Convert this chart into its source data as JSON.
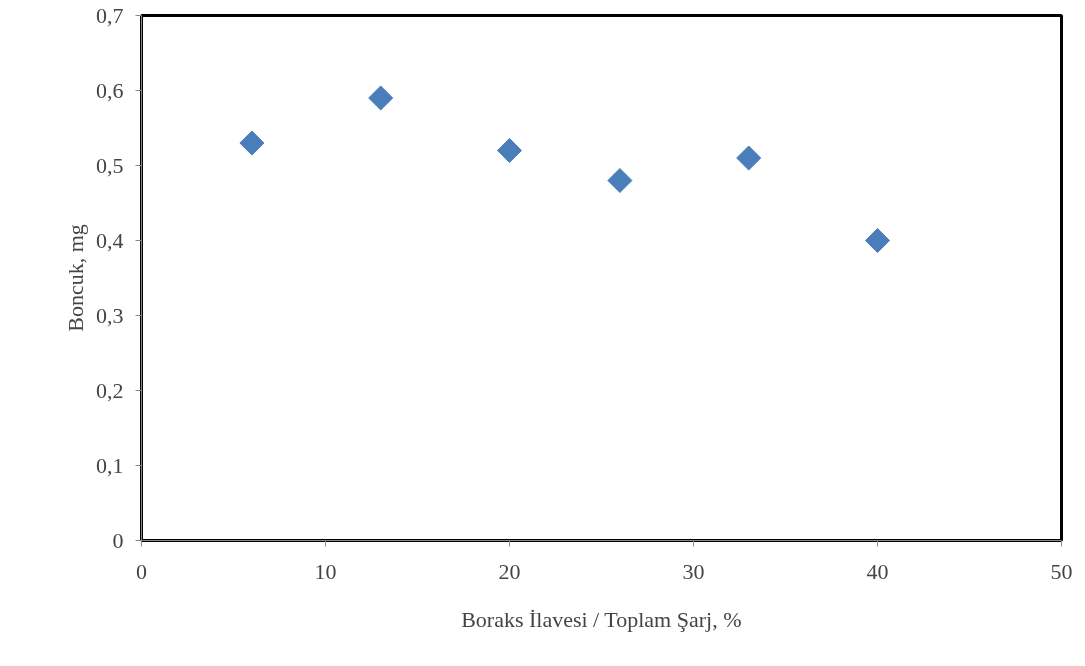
{
  "chart_data": {
    "type": "scatter",
    "xlabel": "Boraks İlavesi / Toplam Şarj, %",
    "ylabel": "Boncuk, mg",
    "x": [
      6,
      13,
      20,
      26,
      33,
      40
    ],
    "series": [
      {
        "color": "#4a7ebb",
        "values": [
          0.53,
          0.59,
          0.52,
          0.48,
          0.51,
          0.4
        ]
      }
    ],
    "xlim": [
      0,
      50
    ],
    "xticks": [
      0,
      10,
      20,
      30,
      40,
      50
    ],
    "ylim": [
      0,
      0.7
    ],
    "yticks": [
      0,
      {
        "value": 0.1,
        "label": "0,1"
      },
      {
        "value": 0.2,
        "label": "0,2"
      },
      {
        "value": 0.3,
        "label": "0,3"
      },
      {
        "value": 0.4,
        "label": "0,4"
      },
      {
        "value": 0.5,
        "label": "0,5"
      },
      {
        "value": 0.6,
        "label": "0,6"
      },
      {
        "value": 0.7,
        "label": "0,7"
      }
    ],
    "grid": false,
    "marker": "diamond"
  }
}
